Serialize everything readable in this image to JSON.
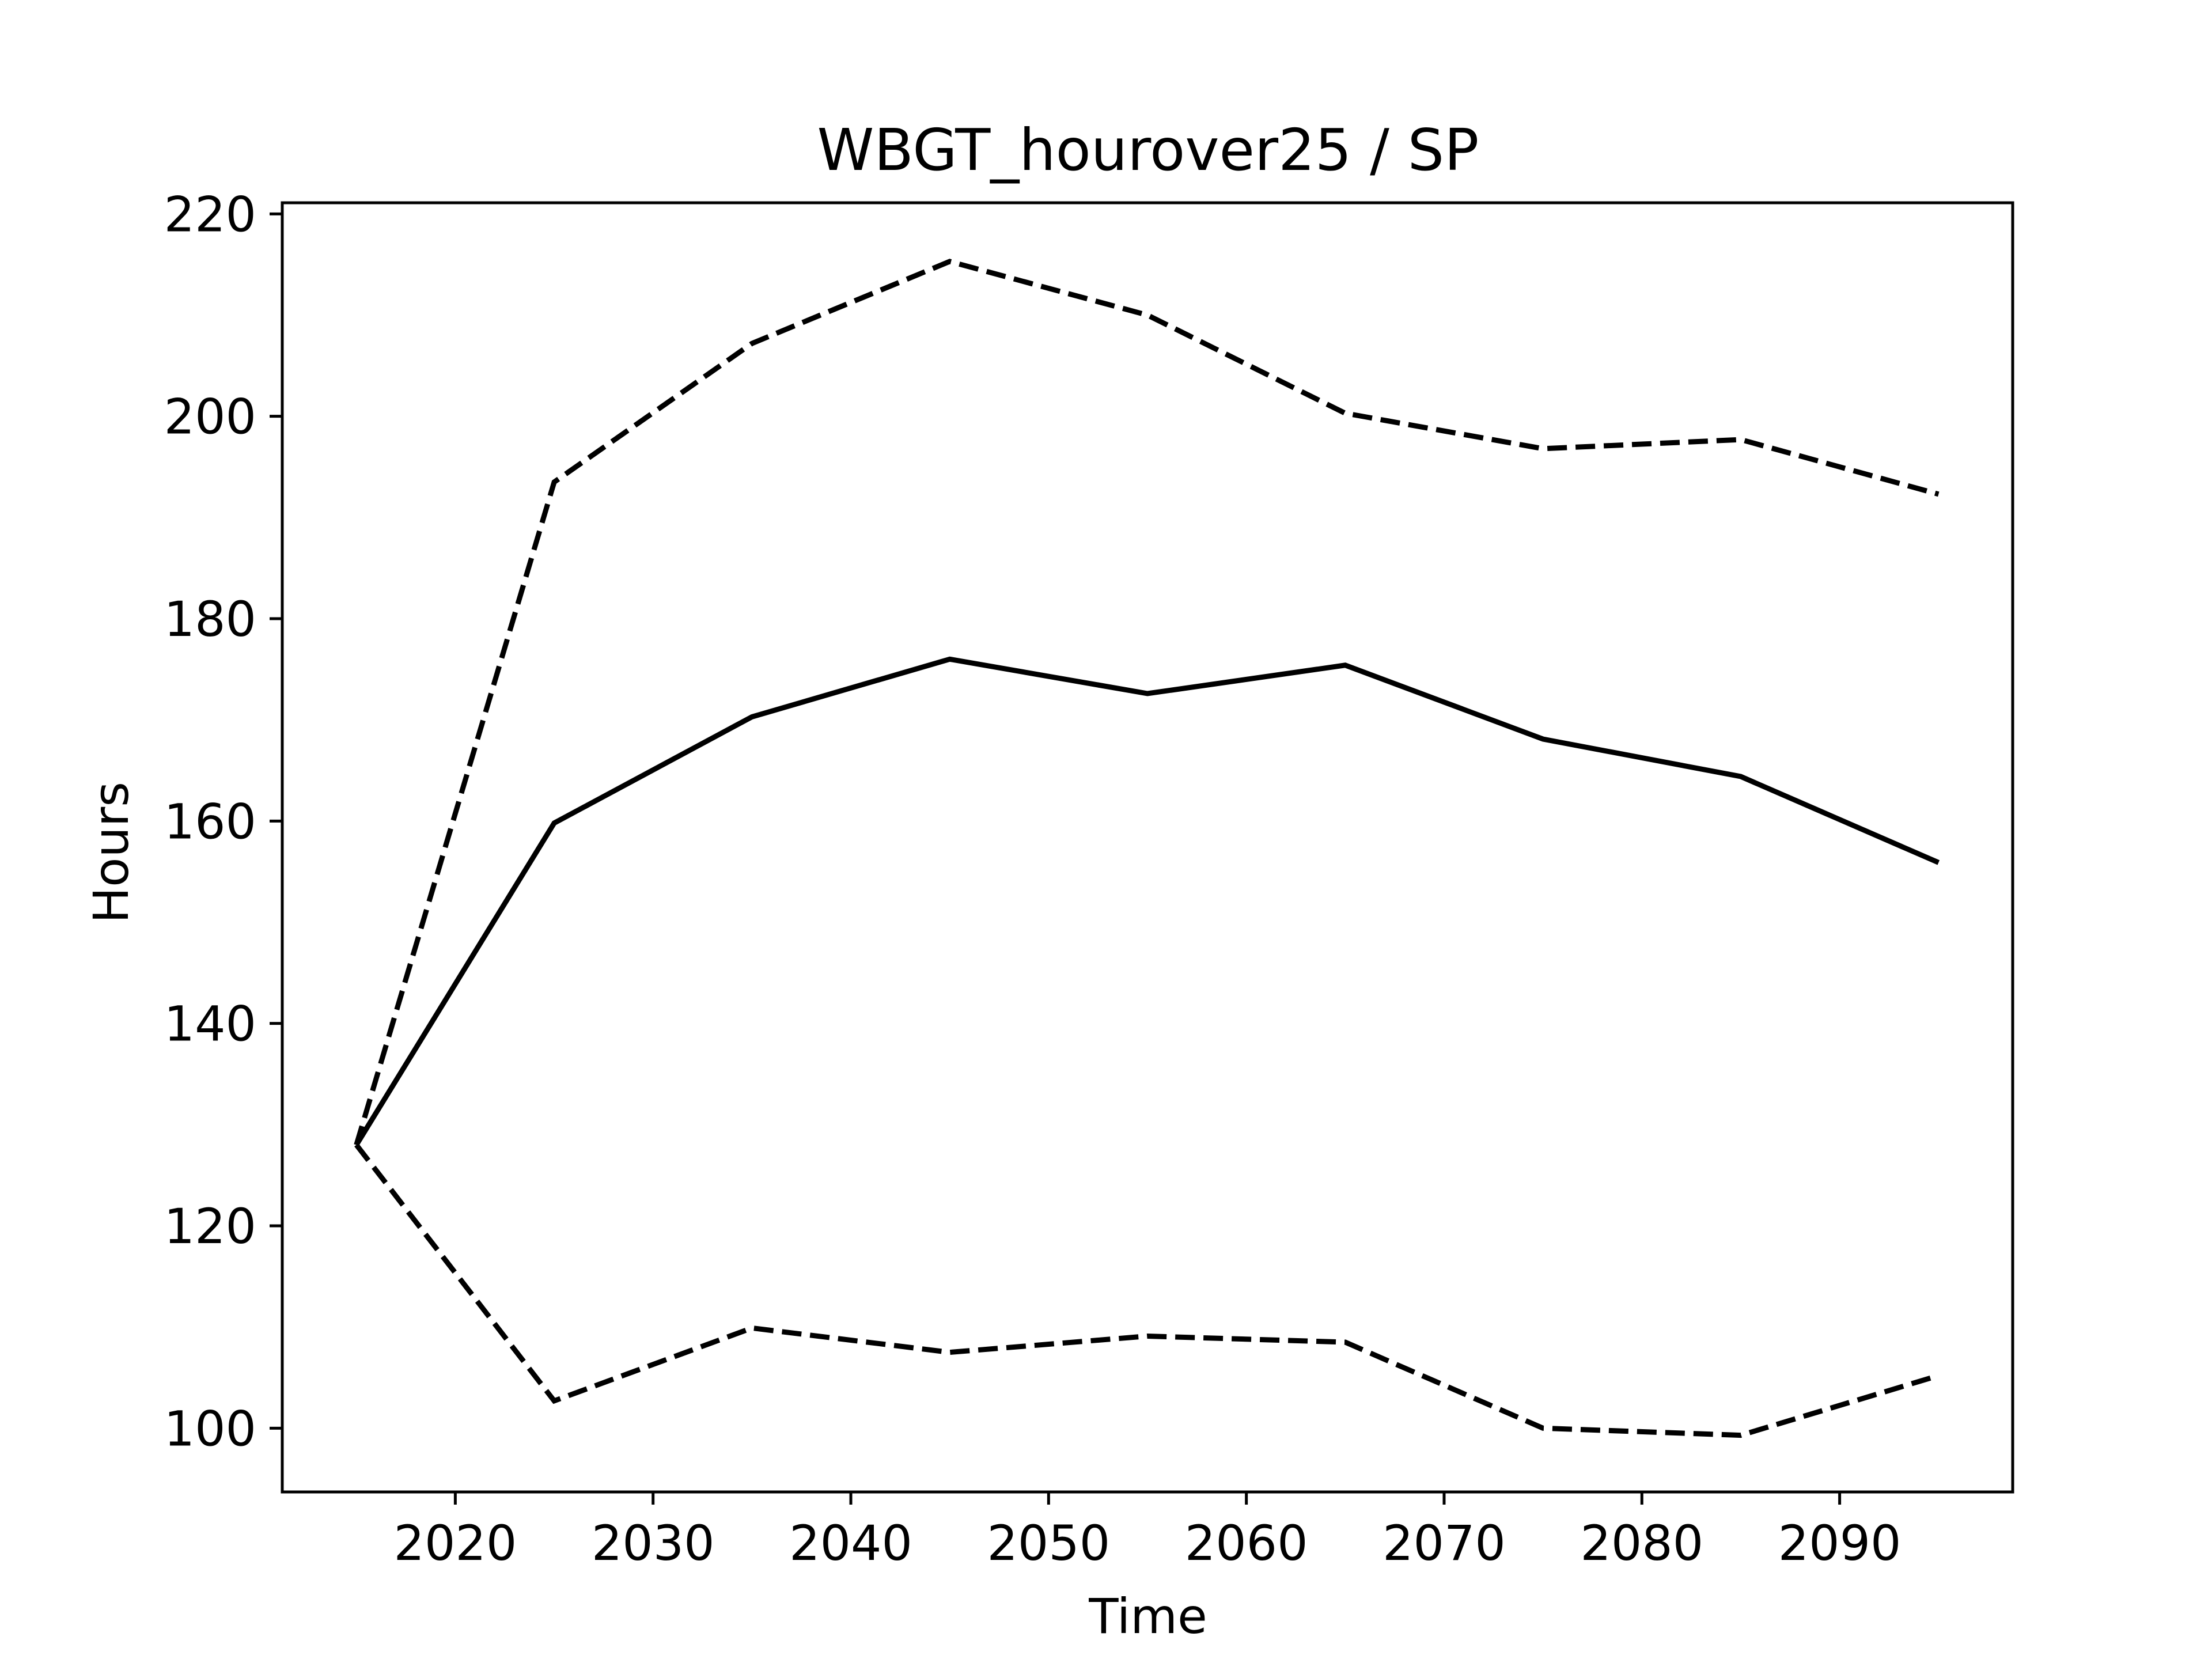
{
  "chart_data": {
    "type": "line",
    "title": "WBGT_hourover25 / SP",
    "xlabel": "Time",
    "ylabel": "Hours",
    "xlim": [
      2011.25,
      2098.75
    ],
    "ylim": [
      93.7,
      221.1
    ],
    "x_ticks": [
      2020,
      2030,
      2040,
      2050,
      2060,
      2070,
      2080,
      2090
    ],
    "y_ticks": [
      100,
      120,
      140,
      160,
      180,
      200,
      220
    ],
    "grid": false,
    "legend": "none",
    "x": [
      2015,
      2025,
      2035,
      2045,
      2055,
      2065,
      2075,
      2085,
      2095
    ],
    "series": [
      {
        "style": "dashed",
        "color": "#000000",
        "values": [
          128.0,
          193.5,
          207.2,
          215.3,
          210.0,
          200.3,
          196.8,
          197.7,
          192.3
        ]
      },
      {
        "style": "solid",
        "color": "#000000",
        "values": [
          128.0,
          159.8,
          170.3,
          176.0,
          172.6,
          175.4,
          168.1,
          164.4,
          155.9
        ]
      },
      {
        "style": "dashed",
        "color": "#000000",
        "values": [
          128.0,
          102.7,
          109.9,
          107.5,
          109.1,
          108.5,
          100.0,
          99.3,
          105.2
        ]
      }
    ]
  }
}
